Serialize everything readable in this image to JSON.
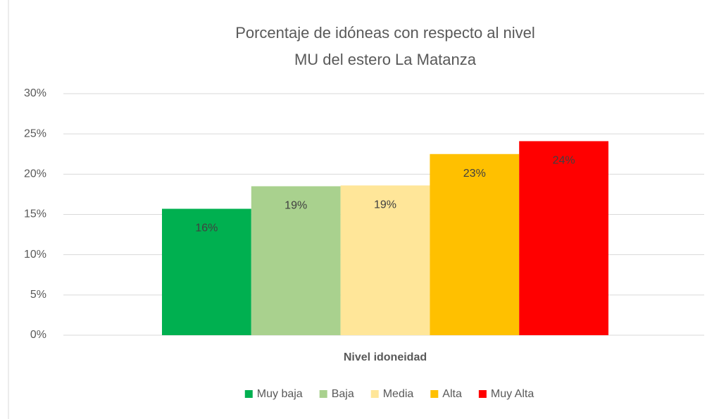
{
  "chart_data": {
    "type": "bar",
    "title": [
      "Porcentaje de idóneas con respecto al nivel",
      "MU del estero La Matanza"
    ],
    "x_label": "Nivel idoneidad",
    "series": [
      {
        "name": "Muy baja",
        "color": "#00b050",
        "values": [
          15.7
        ],
        "value_labels": [
          "16%"
        ]
      },
      {
        "name": "Baja",
        "color": "#a9d18e",
        "values": [
          18.5
        ],
        "value_labels": [
          "19%"
        ]
      },
      {
        "name": "Media",
        "color": "#ffe699",
        "values": [
          18.6
        ],
        "value_labels": [
          "19%"
        ]
      },
      {
        "name": "Alta",
        "color": "#ffc000",
        "values": [
          22.5
        ],
        "value_labels": [
          "23%"
        ]
      },
      {
        "name": "Muy Alta",
        "color": "#ff0000",
        "values": [
          24.1
        ],
        "value_labels": [
          "24%"
        ]
      }
    ],
    "ylim": [
      0,
      30
    ],
    "yticks": [
      {
        "value": 0,
        "label": "0%"
      },
      {
        "value": 5,
        "label": "5%"
      },
      {
        "value": 10,
        "label": "10%"
      },
      {
        "value": 15,
        "label": "15%"
      },
      {
        "value": 20,
        "label": "20%"
      },
      {
        "value": 25,
        "label": "25%"
      },
      {
        "value": 30,
        "label": "30%"
      }
    ],
    "grid": true,
    "legend": "bottom"
  }
}
